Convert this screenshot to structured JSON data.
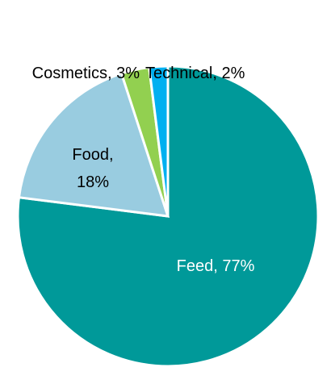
{
  "chart_data": {
    "type": "pie",
    "title": "",
    "start_angle_deg": 0,
    "direction": "clockwise",
    "legend": "none",
    "slices": [
      {
        "name": "Feed",
        "value": 77,
        "label": "Feed, 77%",
        "color": "#009999",
        "label_color": "#ffffff"
      },
      {
        "name": "Food",
        "value": 18,
        "label_lines": [
          "Food,",
          "18%"
        ],
        "color": "#99cce0",
        "label_color": "#000000"
      },
      {
        "name": "Cosmetics",
        "value": 3,
        "label": "Cosmetics, 3%",
        "color": "#92d050",
        "label_color": "#000000"
      },
      {
        "name": "Technical",
        "value": 2,
        "label": "Technical, 2%",
        "color": "#00b0f0",
        "label_color": "#000000"
      }
    ]
  }
}
